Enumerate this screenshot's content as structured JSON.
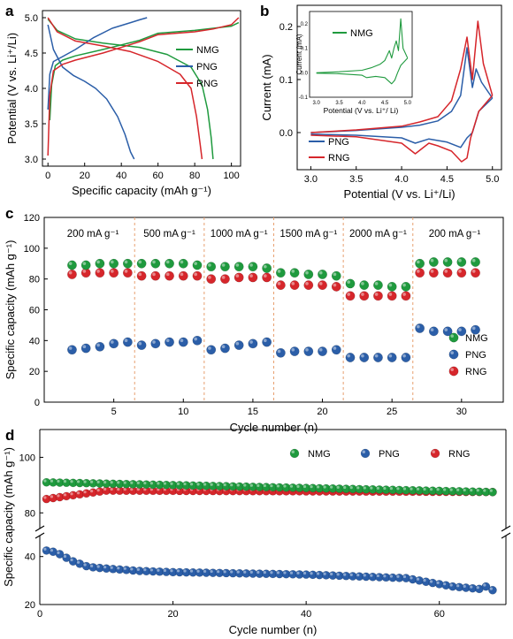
{
  "colors": {
    "NMG": "#1f9a3e",
    "PNG": "#2b5ea8",
    "RNG": "#d6262b",
    "divider": "#e8a070"
  },
  "chart_data": [
    {
      "panel": "a",
      "type": "line",
      "xlabel": "Specific capacity (mAh g⁻¹)",
      "ylabel": "Potential (V vs. Li⁺/Li)",
      "xlim": [
        -3,
        105
      ],
      "ylim": [
        2.9,
        5.1
      ],
      "xticks": [
        "0",
        "20",
        "40",
        "60",
        "80",
        "100"
      ],
      "yticks": [
        "3.0",
        "3.5",
        "4.0",
        "4.5",
        "5.0"
      ],
      "legend": [
        "NMG",
        "PNG",
        "RNG"
      ],
      "series": [
        {
          "name": "NMG",
          "charge": {
            "x": [
              1,
              2,
              4,
              8,
              15,
              30,
              50,
              60,
              70,
              80,
              90,
              100,
              104
            ],
            "y": [
              3.55,
              4.05,
              4.32,
              4.4,
              4.46,
              4.55,
              4.68,
              4.78,
              4.8,
              4.82,
              4.85,
              4.88,
              4.93
            ]
          },
          "discharge": {
            "x": [
              0,
              5,
              15,
              30,
              50,
              65,
              78,
              84,
              87,
              89,
              90
            ],
            "y": [
              4.98,
              4.82,
              4.7,
              4.64,
              4.58,
              4.48,
              4.3,
              4.05,
              3.7,
              3.3,
              3.0
            ]
          }
        },
        {
          "name": "PNG",
          "charge": {
            "x": [
              0,
              1,
              3,
              8,
              15,
              25,
              35,
              45,
              50,
              54
            ],
            "y": [
              3.7,
              4.2,
              4.38,
              4.45,
              4.55,
              4.72,
              4.85,
              4.93,
              4.97,
              5.0
            ]
          },
          "discharge": {
            "x": [
              0,
              3,
              8,
              14,
              20,
              26,
              32,
              38,
              42,
              45,
              47
            ],
            "y": [
              4.9,
              4.55,
              4.3,
              4.18,
              4.1,
              4.0,
              3.85,
              3.6,
              3.35,
              3.1,
              3.0
            ]
          }
        },
        {
          "name": "RNG",
          "charge": {
            "x": [
              0,
              1,
              3,
              8,
              15,
              30,
              50,
              60,
              70,
              80,
              90,
              100,
              104
            ],
            "y": [
              3.05,
              3.9,
              4.25,
              4.34,
              4.4,
              4.5,
              4.66,
              4.76,
              4.78,
              4.8,
              4.84,
              4.9,
              5.0
            ]
          },
          "discharge": {
            "x": [
              0,
              5,
              15,
              30,
              45,
              60,
              72,
              78,
              81,
              83,
              84
            ],
            "y": [
              5.0,
              4.8,
              4.67,
              4.6,
              4.52,
              4.38,
              4.2,
              4.0,
              3.6,
              3.2,
              3.0
            ]
          }
        }
      ]
    },
    {
      "panel": "b",
      "type": "line",
      "xlabel": "Potential (V vs. Li⁺/Li)",
      "ylabel": "Current (mA)",
      "xlim": [
        2.85,
        5.1
      ],
      "ylim": [
        -0.07,
        0.24
      ],
      "xticks": [
        "3.0",
        "3.5",
        "4.0",
        "4.5",
        "5.0"
      ],
      "yticks": [
        "-0.1",
        "0.0",
        "0.1",
        "0.2"
      ],
      "legend": [
        "PNG",
        "RNG"
      ],
      "series": [
        {
          "name": "PNG",
          "upper": {
            "x": [
              3.0,
              3.5,
              4.0,
              4.2,
              4.4,
              4.55,
              4.65,
              4.72,
              4.78,
              4.82,
              4.88,
              5.0
            ],
            "y": [
              0.0,
              0.004,
              0.01,
              0.014,
              0.022,
              0.04,
              0.07,
              0.16,
              0.085,
              0.12,
              0.095,
              0.065
            ]
          },
          "lower": {
            "x": [
              5.0,
              4.85,
              4.78,
              4.72,
              4.65,
              4.5,
              4.3,
              4.15,
              4.0,
              3.5,
              3.0
            ],
            "y": [
              0.065,
              0.04,
              0.0,
              -0.01,
              -0.028,
              -0.018,
              -0.012,
              -0.02,
              -0.01,
              -0.005,
              -0.003
            ]
          }
        },
        {
          "name": "RNG",
          "upper": {
            "x": [
              3.0,
              3.5,
              4.0,
              4.2,
              4.4,
              4.55,
              4.65,
              4.72,
              4.78,
              4.84,
              4.9,
              5.0
            ],
            "y": [
              0.0,
              0.005,
              0.012,
              0.02,
              0.03,
              0.06,
              0.12,
              0.18,
              0.1,
              0.21,
              0.13,
              0.07
            ]
          },
          "lower": {
            "x": [
              5.0,
              4.85,
              4.76,
              4.72,
              4.66,
              4.55,
              4.4,
              4.3,
              4.15,
              4.0,
              3.5,
              3.0
            ],
            "y": [
              0.07,
              0.04,
              -0.01,
              -0.048,
              -0.055,
              -0.035,
              -0.025,
              -0.02,
              -0.04,
              -0.02,
              -0.008,
              -0.005
            ]
          }
        }
      ],
      "inset": {
        "xlabel": "Potential (V vs. Li⁺/ Li)",
        "ylabel": "Current (mA)",
        "xticks": [
          "3.0",
          "3.5",
          "4.0",
          "4.5",
          "5.0"
        ],
        "yticks": [
          "-0.1",
          "0.0",
          "0.1",
          "0.2"
        ],
        "xlim": [
          2.85,
          5.1
        ],
        "ylim": [
          -0.1,
          0.25
        ],
        "legend": [
          "NMG"
        ],
        "series": [
          {
            "name": "NMG",
            "upper": {
              "x": [
                3.0,
                3.5,
                4.0,
                4.2,
                4.4,
                4.5,
                4.6,
                4.65,
                4.7,
                4.75,
                4.8,
                4.85,
                4.9,
                5.0
              ],
              "y": [
                0.0,
                0.004,
                0.01,
                0.02,
                0.035,
                0.05,
                0.09,
                0.06,
                0.1,
                0.13,
                0.09,
                0.22,
                0.1,
                0.06
              ]
            },
            "lower": {
              "x": [
                5.0,
                4.85,
                4.78,
                4.72,
                4.65,
                4.5,
                4.3,
                4.1,
                4.0,
                3.5,
                3.0
              ],
              "y": [
                0.06,
                0.03,
                0.0,
                -0.03,
                -0.045,
                -0.02,
                -0.015,
                -0.02,
                -0.01,
                -0.004,
                -0.002
              ]
            }
          }
        ]
      }
    },
    {
      "panel": "c",
      "type": "scatter",
      "xlabel": "Cycle number (n)",
      "ylabel": "Specific capacity (mAh g⁻¹)",
      "xlim": [
        0,
        33
      ],
      "ylim": [
        0,
        120
      ],
      "xticks": [
        "5",
        "10",
        "15",
        "20",
        "25",
        "30"
      ],
      "yticks": [
        "0",
        "20",
        "40",
        "60",
        "80",
        "100",
        "120"
      ],
      "rates": [
        "200 mA g⁻¹",
        "500 mA g⁻¹",
        "1000 mA g⁻¹",
        "1500 mA g⁻¹",
        "2000 mA g⁻¹",
        "200 mA g⁻¹"
      ],
      "dividers": [
        6.5,
        11.5,
        16.5,
        21.5,
        26.5
      ],
      "legend": [
        "NMG",
        "PNG",
        "RNG"
      ],
      "x": [
        2,
        3,
        4,
        5,
        6,
        7,
        8,
        9,
        10,
        11,
        12,
        13,
        14,
        15,
        16,
        17,
        18,
        19,
        20,
        21,
        22,
        23,
        24,
        25,
        26,
        27,
        28,
        29,
        30,
        31
      ],
      "series": [
        {
          "name": "NMG",
          "values": [
            89,
            89,
            90,
            90,
            90,
            90,
            90,
            90,
            90,
            89,
            88,
            88,
            88,
            88,
            87,
            84,
            84,
            83,
            83,
            82,
            77,
            76,
            76,
            75,
            75,
            90,
            91,
            91,
            91,
            91
          ]
        },
        {
          "name": "PNG",
          "values": [
            34,
            35,
            36,
            38,
            39,
            37,
            38,
            39,
            39,
            40,
            34,
            35,
            37,
            38,
            39,
            32,
            33,
            33,
            33,
            34,
            29,
            29,
            29,
            29,
            29,
            48,
            46,
            46,
            46,
            47
          ]
        },
        {
          "name": "RNG",
          "values": [
            83,
            84,
            84,
            84,
            84,
            82,
            82,
            82,
            82,
            82,
            80,
            80,
            81,
            81,
            81,
            76,
            76,
            76,
            76,
            75,
            69,
            69,
            69,
            69,
            69,
            84,
            84,
            84,
            84,
            84
          ]
        }
      ]
    },
    {
      "panel": "d",
      "type": "scatter",
      "xlabel": "Cycle number (n)",
      "ylabel": "Specific capacity (mAh g⁻¹)",
      "xlim": [
        0,
        70
      ],
      "ylim_upper": [
        75,
        110
      ],
      "ylim_lower": [
        20,
        48
      ],
      "xticks": [
        "0",
        "20",
        "40",
        "60"
      ],
      "yticks_upper": [
        "80",
        "100"
      ],
      "yticks_lower": [
        "20",
        "40"
      ],
      "legend": [
        "NMG",
        "PNG",
        "RNG"
      ],
      "series": [
        {
          "name": "NMG",
          "start": 91,
          "end": 87.5
        },
        {
          "name": "PNG",
          "points": [
            [
              1,
              42.5
            ],
            [
              2,
              42
            ],
            [
              3,
              41
            ],
            [
              4,
              39.5
            ],
            [
              5,
              38
            ],
            [
              6,
              37
            ],
            [
              7,
              36
            ],
            [
              8,
              35.5
            ],
            [
              10,
              35
            ],
            [
              15,
              34
            ],
            [
              20,
              33.5
            ],
            [
              30,
              33
            ],
            [
              40,
              32.5
            ],
            [
              50,
              31.5
            ],
            [
              55,
              31
            ],
            [
              57,
              30
            ],
            [
              60,
              28.5
            ],
            [
              62,
              27.5
            ],
            [
              64,
              27
            ],
            [
              66,
              26.5
            ],
            [
              67,
              27.5
            ],
            [
              68,
              26
            ]
          ]
        },
        {
          "name": "RNG",
          "start": 85,
          "plateau": 88,
          "end": 87.5
        }
      ]
    }
  ]
}
